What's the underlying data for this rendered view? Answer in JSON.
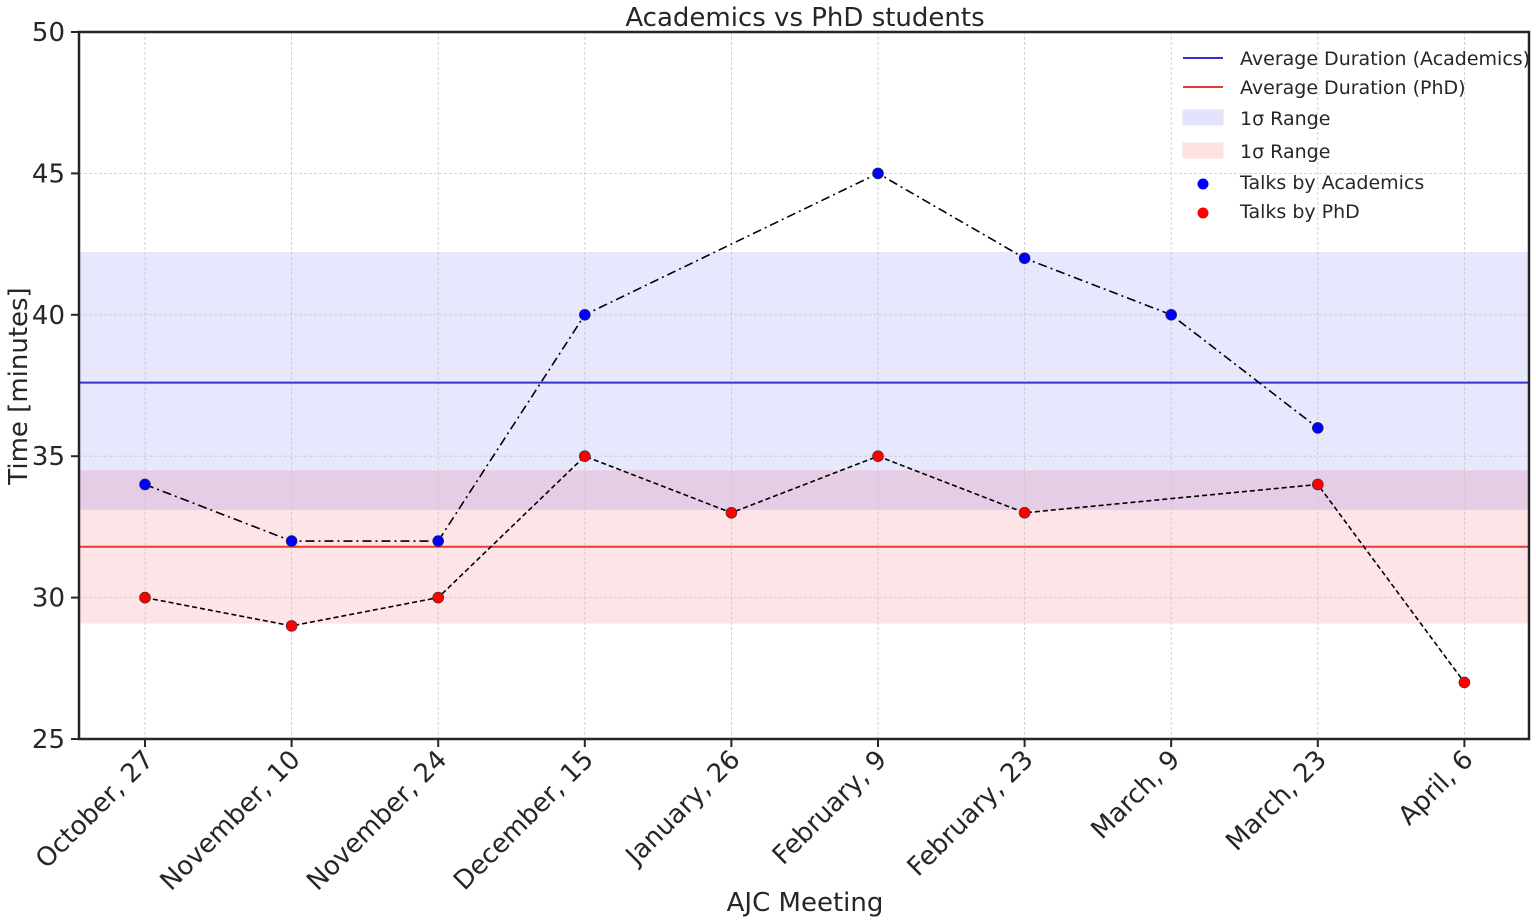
{
  "colors": {
    "academics": "#0000ff",
    "phd": "#ff0000",
    "academics_line": "#3333cc",
    "phd_line": "#e83a3a",
    "academics_band": "#e3e3fd",
    "phd_band": "#fde1e3",
    "connector": "#000000",
    "grid": "#c8c8c8",
    "axis": "#262626"
  },
  "chart_data": {
    "type": "scatter",
    "title": "Academics vs PhD students",
    "xlabel": "AJC Meeting",
    "ylabel": "Time [minutes]",
    "ylim": [
      25,
      50
    ],
    "yticks": [
      25,
      30,
      35,
      40,
      45,
      50
    ],
    "categories": [
      "October, 27",
      "November, 10",
      "November, 24",
      "December, 15",
      "January, 26",
      "February, 9",
      "February, 23",
      "March, 9",
      "March, 23",
      "April, 6"
    ],
    "grid": true,
    "legend_position": "top-right",
    "series": [
      {
        "name": "Talks by Academics",
        "color": "#0000ff",
        "linestyle": "dashdot",
        "points": [
          {
            "x": "October, 27",
            "y": 34
          },
          {
            "x": "November, 10",
            "y": 32
          },
          {
            "x": "November, 24",
            "y": 32
          },
          {
            "x": "December, 15",
            "y": 40
          },
          {
            "x": "February, 9",
            "y": 45
          },
          {
            "x": "February, 23",
            "y": 42
          },
          {
            "x": "March, 9",
            "y": 40
          },
          {
            "x": "March, 23",
            "y": 36
          }
        ]
      },
      {
        "name": "Talks by PhD",
        "color": "#ff0000",
        "linestyle": "dashed",
        "points": [
          {
            "x": "October, 27",
            "y": 30
          },
          {
            "x": "November, 10",
            "y": 29
          },
          {
            "x": "November, 24",
            "y": 30
          },
          {
            "x": "December, 15",
            "y": 35
          },
          {
            "x": "January, 26",
            "y": 33
          },
          {
            "x": "February, 9",
            "y": 35
          },
          {
            "x": "February, 23",
            "y": 33
          },
          {
            "x": "March, 23",
            "y": 34
          },
          {
            "x": "April, 6",
            "y": 27
          }
        ]
      }
    ],
    "reference_lines": [
      {
        "name": "Average Duration (Academics)",
        "y": 37.6,
        "color": "#3333cc"
      },
      {
        "name": "Average Duration (PhD)",
        "y": 31.8,
        "color": "#e83a3a"
      }
    ],
    "bands": [
      {
        "name": "1σ Range",
        "ymin": 33.1,
        "ymax": 42.2,
        "color": "#e3e3fd"
      },
      {
        "name": "1σ Range",
        "ymin": 29.1,
        "ymax": 34.5,
        "color": "#fde1e3"
      }
    ],
    "legend": [
      {
        "label": "Average Duration (Academics)",
        "kind": "line",
        "color": "#3333cc"
      },
      {
        "label": "Average Duration (PhD)",
        "kind": "line",
        "color": "#e83a3a"
      },
      {
        "label": "1σ Range",
        "kind": "band",
        "color": "#e3e3fd"
      },
      {
        "label": "1σ Range",
        "kind": "band",
        "color": "#fde1e3"
      },
      {
        "label": "Talks by Academics",
        "kind": "marker",
        "color": "#0000ff"
      },
      {
        "label": "Talks by PhD",
        "kind": "marker",
        "color": "#ff0000"
      }
    ]
  }
}
